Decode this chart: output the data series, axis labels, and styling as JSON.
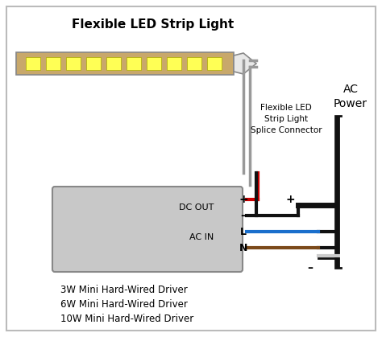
{
  "title": "Flexible LED Strip Light",
  "bg_color": "#ffffff",
  "border_color": "#bbbbbb",
  "strip_color": "#c8a86b",
  "led_color": "#ffff55",
  "connector_color": "#e8e8e8",
  "driver_box_color": "#c8c8c8",
  "driver_box_edge": "#888888",
  "wire_red": "#cc0000",
  "wire_black": "#111111",
  "wire_blue": "#1a6fcc",
  "wire_brown": "#7b4a1a",
  "wire_gray": "#aaaaaa",
  "ac_power_label": "AC\nPower",
  "splice_label": "Flexible LED\nStrip Light\nSplice Connector",
  "dc_out_label": "DC OUT",
  "ac_in_label": "AC IN",
  "driver_lines": [
    "3W Mini Hard-Wired Driver",
    "6W Mini Hard-Wired Driver",
    "10W Mini Hard-Wired Driver"
  ],
  "num_leds": 10
}
